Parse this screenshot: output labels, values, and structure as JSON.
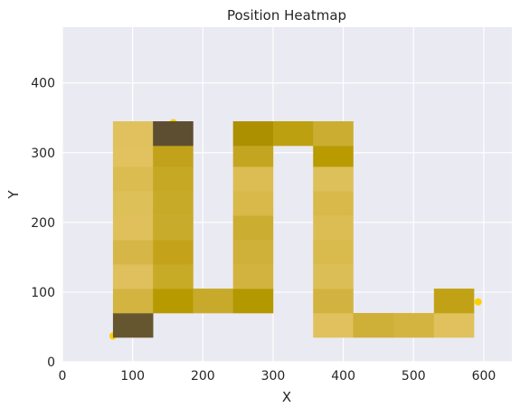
{
  "chart_data": {
    "type": "heatmap",
    "title": "Position Heatmap",
    "xlabel": "X",
    "ylabel": "Y",
    "xlim": [
      0,
      640
    ],
    "ylim": [
      0,
      480
    ],
    "x_ticks": [
      "0",
      "100",
      "200",
      "300",
      "400",
      "500",
      "600"
    ],
    "y_ticks": [
      "0",
      "100",
      "200",
      "300",
      "400"
    ],
    "x_tick_values": [
      0,
      100,
      200,
      300,
      400,
      500,
      600
    ],
    "y_tick_values": [
      0,
      100,
      200,
      300,
      400
    ],
    "grid": true,
    "colors": {
      "plot_background": "#eaeaf2",
      "grid": "#ffffff",
      "scatter": "#ffd000"
    },
    "cells": [
      {
        "x0": 72,
        "x1": 129,
        "y0": 35,
        "y1": 70,
        "color": "#665630"
      },
      {
        "x0": 72,
        "x1": 129,
        "y0": 70,
        "y1": 105,
        "color": "#d3b440"
      },
      {
        "x0": 72,
        "x1": 129,
        "y0": 105,
        "y1": 140,
        "color": "#e0c05c"
      },
      {
        "x0": 72,
        "x1": 129,
        "y0": 140,
        "y1": 175,
        "color": "#d6b646"
      },
      {
        "x0": 72,
        "x1": 129,
        "y0": 175,
        "y1": 210,
        "color": "#dfc05a"
      },
      {
        "x0": 72,
        "x1": 129,
        "y0": 210,
        "y1": 245,
        "color": "#dec059"
      },
      {
        "x0": 72,
        "x1": 129,
        "y0": 245,
        "y1": 280,
        "color": "#dbbc51"
      },
      {
        "x0": 72,
        "x1": 129,
        "y0": 280,
        "y1": 310,
        "color": "#e1c25e"
      },
      {
        "x0": 72,
        "x1": 129,
        "y0": 310,
        "y1": 345,
        "color": "#e0c15d"
      },
      {
        "x0": 129,
        "x1": 186,
        "y0": 70,
        "y1": 105,
        "color": "#b79a00"
      },
      {
        "x0": 129,
        "x1": 186,
        "y0": 105,
        "y1": 140,
        "color": "#c7aa26"
      },
      {
        "x0": 129,
        "x1": 186,
        "y0": 140,
        "y1": 175,
        "color": "#c4a31a"
      },
      {
        "x0": 129,
        "x1": 186,
        "y0": 175,
        "y1": 210,
        "color": "#c8ab2a"
      },
      {
        "x0": 129,
        "x1": 186,
        "y0": 210,
        "y1": 245,
        "color": "#c7aa28"
      },
      {
        "x0": 129,
        "x1": 186,
        "y0": 245,
        "y1": 280,
        "color": "#c6a824"
      },
      {
        "x0": 129,
        "x1": 186,
        "y0": 280,
        "y1": 310,
        "color": "#c2a21a"
      },
      {
        "x0": 129,
        "x1": 186,
        "y0": 310,
        "y1": 345,
        "color": "#5d4e31"
      },
      {
        "x0": 186,
        "x1": 243,
        "y0": 70,
        "y1": 105,
        "color": "#c8aa2a"
      },
      {
        "x0": 243,
        "x1": 300,
        "y0": 70,
        "y1": 105,
        "color": "#b39800"
      },
      {
        "x0": 243,
        "x1": 300,
        "y0": 105,
        "y1": 140,
        "color": "#d3b33f"
      },
      {
        "x0": 243,
        "x1": 300,
        "y0": 140,
        "y1": 175,
        "color": "#cfb039"
      },
      {
        "x0": 243,
        "x1": 300,
        "y0": 175,
        "y1": 210,
        "color": "#cbad31"
      },
      {
        "x0": 243,
        "x1": 300,
        "y0": 210,
        "y1": 245,
        "color": "#d8b949"
      },
      {
        "x0": 243,
        "x1": 300,
        "y0": 245,
        "y1": 280,
        "color": "#dcbd53"
      },
      {
        "x0": 243,
        "x1": 300,
        "y0": 280,
        "y1": 310,
        "color": "#c4a521"
      },
      {
        "x0": 243,
        "x1": 300,
        "y0": 310,
        "y1": 345,
        "color": "#ad9000"
      },
      {
        "x0": 300,
        "x1": 357,
        "y0": 310,
        "y1": 345,
        "color": "#bda010"
      },
      {
        "x0": 357,
        "x1": 414,
        "y0": 35,
        "y1": 70,
        "color": "#e0c15d"
      },
      {
        "x0": 357,
        "x1": 414,
        "y0": 70,
        "y1": 105,
        "color": "#d2b33f"
      },
      {
        "x0": 357,
        "x1": 414,
        "y0": 105,
        "y1": 140,
        "color": "#dcbe56"
      },
      {
        "x0": 357,
        "x1": 414,
        "y0": 140,
        "y1": 175,
        "color": "#d9ba4d"
      },
      {
        "x0": 357,
        "x1": 414,
        "y0": 175,
        "y1": 210,
        "color": "#dcbd54"
      },
      {
        "x0": 357,
        "x1": 414,
        "y0": 210,
        "y1": 245,
        "color": "#d8b949"
      },
      {
        "x0": 357,
        "x1": 414,
        "y0": 245,
        "y1": 280,
        "color": "#dec05a"
      },
      {
        "x0": 357,
        "x1": 414,
        "y0": 280,
        "y1": 310,
        "color": "#b99b00"
      },
      {
        "x0": 357,
        "x1": 414,
        "y0": 310,
        "y1": 345,
        "color": "#cbad32"
      },
      {
        "x0": 414,
        "x1": 472,
        "y0": 35,
        "y1": 70,
        "color": "#ceaf37"
      },
      {
        "x0": 472,
        "x1": 529,
        "y0": 35,
        "y1": 70,
        "color": "#d4b440"
      },
      {
        "x0": 529,
        "x1": 586,
        "y0": 35,
        "y1": 70,
        "color": "#e0c15d"
      },
      {
        "x0": 529,
        "x1": 586,
        "y0": 70,
        "y1": 105,
        "color": "#c1a216"
      }
    ],
    "points": [
      {
        "x": 72,
        "y": 37
      },
      {
        "x": 158,
        "y": 343
      },
      {
        "x": 592,
        "y": 86
      }
    ]
  }
}
